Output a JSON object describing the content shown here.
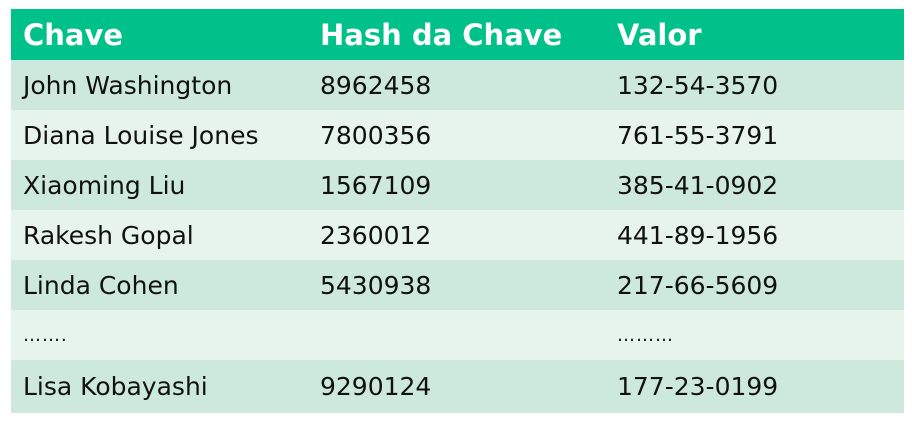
{
  "table": {
    "headers": [
      "Chave",
      "Hash da Chave",
      "Valor"
    ],
    "rows": [
      [
        "John Washington",
        "8962458",
        "132-54-3570"
      ],
      [
        "Diana Louise Jones",
        "7800356",
        "761-55-3791"
      ],
      [
        "Xiaoming Liu",
        "1567109",
        "385-41-0902"
      ],
      [
        "Rakesh Gopal",
        "2360012",
        "441-89-1956"
      ],
      [
        "Linda Cohen",
        "5430938",
        "217-66-5609"
      ],
      [
        "…….",
        "",
        "………"
      ],
      [
        "Lisa Kobayashi",
        "9290124",
        "177-23-0199"
      ]
    ]
  },
  "colors": {
    "header_bg": "#00c18a",
    "header_text": "#ffffff",
    "row_odd": "#cde9dd",
    "row_even": "#e7f4ee"
  }
}
